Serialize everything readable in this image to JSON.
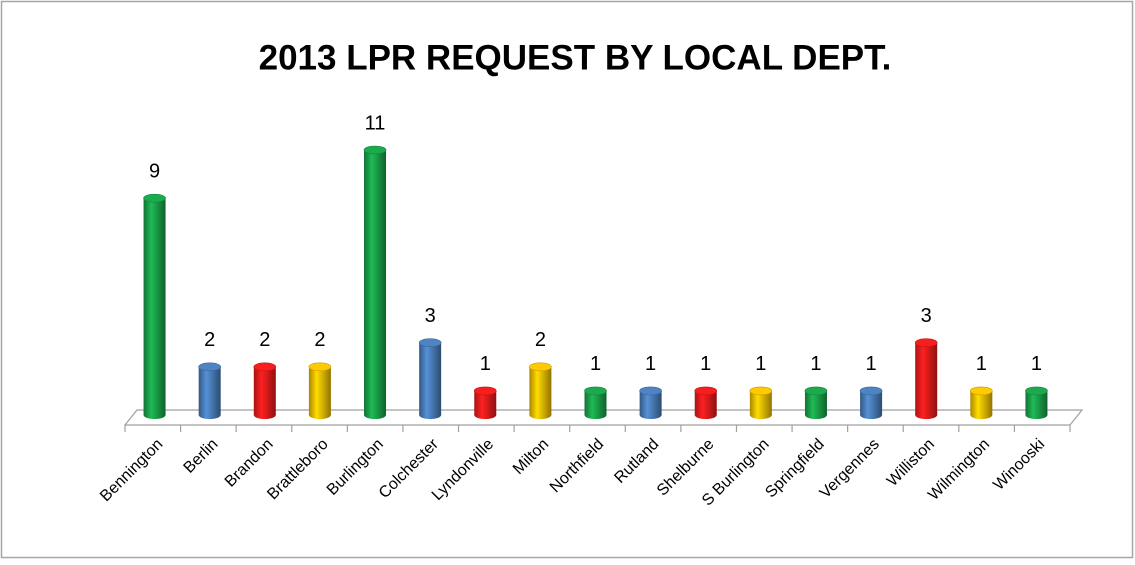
{
  "chart_data": {
    "type": "bar",
    "title": "2013 LPR REQUEST BY LOCAL DEPT.",
    "categories": [
      "Bennington",
      "Berlin",
      "Brandon",
      "Brattleboro",
      "Burlington",
      "Colchester",
      "Lyndonville",
      "Milton",
      "Northfield",
      "Rutland",
      "Shelburne",
      "S Burlington",
      "Springfield",
      "Vergennes",
      "Williston",
      "Wilmington",
      "Winooski"
    ],
    "values": [
      9,
      2,
      2,
      2,
      11,
      3,
      1,
      2,
      1,
      1,
      1,
      1,
      1,
      1,
      3,
      1,
      1
    ],
    "colors": [
      "#1aa34a",
      "#4a7ebb",
      "#ee1c1c",
      "#f5c000",
      "#1aa34a",
      "#4a7ebb",
      "#ee1c1c",
      "#f5c000",
      "#1aa34a",
      "#4a7ebb",
      "#ee1c1c",
      "#f5c000",
      "#1aa34a",
      "#4a7ebb",
      "#ee1c1c",
      "#f5c000",
      "#1aa34a"
    ]
  }
}
